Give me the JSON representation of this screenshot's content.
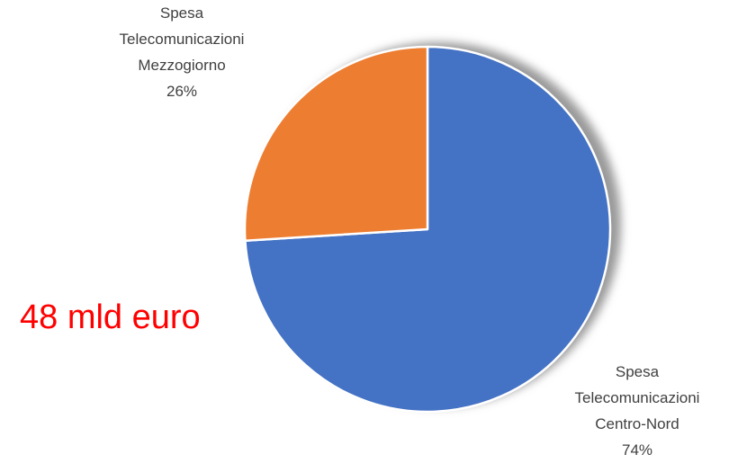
{
  "chart_data": {
    "type": "pie",
    "categories": [
      "Spesa Telecomunicazioni Centro-Nord",
      "Spesa Telecomunicazioni Mezzogiorno"
    ],
    "values": [
      74,
      26
    ],
    "value_labels": [
      "74%",
      "26%"
    ],
    "colors": [
      "#4472c4",
      "#ed7d31"
    ],
    "annotation": "48 mld euro"
  }
}
